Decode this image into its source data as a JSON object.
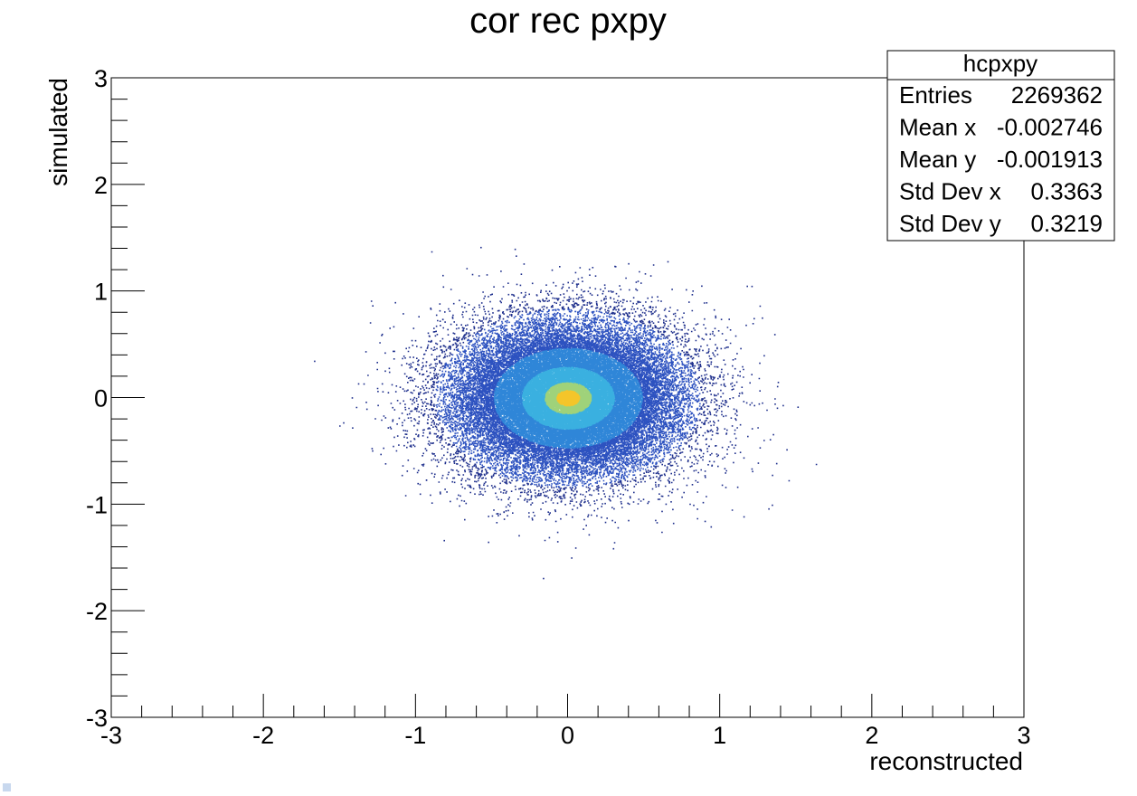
{
  "chart_data": {
    "type": "heatmap",
    "title": "cor rec pxpy",
    "xlabel": "reconstructed",
    "ylabel": "simulated",
    "xlim": [
      -3,
      3
    ],
    "ylim": [
      -3,
      3
    ],
    "x_ticks": [
      "-3",
      "-2",
      "-1",
      "0",
      "1",
      "2",
      "3"
    ],
    "y_ticks": [
      "-3",
      "-2",
      "-1",
      "0",
      "1",
      "2",
      "3"
    ],
    "grid": false,
    "colormap": [
      "#1e2f8c",
      "#2d52c0",
      "#2f86d8",
      "#3ab0e0",
      "#9fd27a",
      "#f4c52a"
    ],
    "stats": {
      "name": "hcpxpy",
      "rows": [
        {
          "label": "Entries",
          "value": "2269362"
        },
        {
          "label": "Mean x",
          "value": "-0.002746"
        },
        {
          "label": "Mean y",
          "value": "-0.001913"
        },
        {
          "label": "Std Dev x",
          "value": "0.3363"
        },
        {
          "label": "Std Dev y",
          "value": "0.3219"
        }
      ]
    },
    "distribution": {
      "entries": 2269362,
      "mean_x": -0.002746,
      "mean_y": -0.001913,
      "std_x": 0.3363,
      "std_y": 0.3219
    }
  }
}
